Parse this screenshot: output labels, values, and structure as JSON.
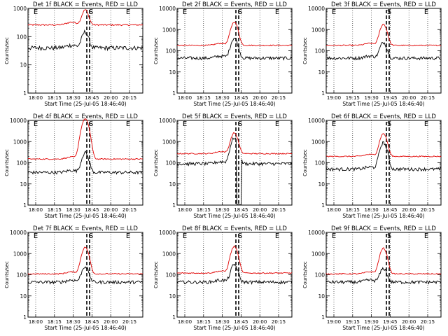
{
  "chart_data": [
    {
      "type": "line",
      "title": "Det 1f BLACK = Events, RED = LLD",
      "ylabel": "Counts/sec",
      "xlabel": "Start Time (25-Jul-05 18:46:40)",
      "x_ticks": [
        "18:00",
        "18:15",
        "18:30",
        "18:45",
        "20:00",
        "20:15"
      ],
      "y_ticks": [
        "1",
        "10",
        "100",
        "1000"
      ],
      "ylim": [
        1,
        1000
      ],
      "scale": "log",
      "markers": [
        "E",
        "S",
        "E"
      ],
      "peak_black": 150,
      "peak_red": 900,
      "base_black": 40,
      "base_red": 260,
      "flare": "large"
    },
    {
      "type": "line",
      "title": "Det 2f BLACK = Events, RED = LLD",
      "ylabel": "Counts/sec",
      "xlabel": "Start Time (25-Jul-05 18:46:40)",
      "x_ticks": [
        "18:00",
        "18:15",
        "18:30",
        "18:45",
        "20:00",
        "20:15"
      ],
      "y_ticks": [
        "1",
        "10",
        "100",
        "1000",
        "10000"
      ],
      "ylim": [
        1,
        10000
      ],
      "scale": "log",
      "markers": [
        "E",
        "S",
        "E"
      ],
      "peak_black": 400,
      "peak_red": 2300,
      "base_black": 45,
      "base_red": 180,
      "flare": "normal"
    },
    {
      "type": "line",
      "title": "Det 3f BLACK = Events, RED = LLD",
      "ylabel": "Counts/sec",
      "xlabel": "Start Time (25-Jul-05 18:46:40)",
      "x_ticks": [
        "19:00",
        "19:15",
        "19:30",
        "19:45",
        "20:00",
        "20:15"
      ],
      "y_ticks": [
        "1",
        "10",
        "100",
        "1000",
        "10000"
      ],
      "ylim": [
        1,
        10000
      ],
      "scale": "log",
      "markers": [
        "E",
        "S",
        "E"
      ],
      "peak_black": 250,
      "peak_red": 1800,
      "base_black": 45,
      "base_red": 180,
      "flare": "normal"
    },
    {
      "type": "line",
      "title": "Det 4f BLACK = Events, RED = LLD",
      "ylabel": "Counts/sec",
      "xlabel": "Start Time (25-Jul-05 18:46:40)",
      "x_ticks": [
        "18:00",
        "18:15",
        "18:30",
        "18:45",
        "20:00",
        "20:15"
      ],
      "y_ticks": [
        "1",
        "10",
        "100",
        "1000",
        "10000"
      ],
      "ylim": [
        1,
        10000
      ],
      "scale": "log",
      "markers": [
        "E",
        "S",
        "E"
      ],
      "peak_black": 300,
      "peak_red": 12000,
      "base_black": 35,
      "base_red": 150,
      "flare": "large"
    },
    {
      "type": "line",
      "title": "Det 5f BLACK = Events, RED = LLD",
      "ylabel": "Counts/sec",
      "xlabel": "Start Time (25-Jul-05 18:46:40)",
      "x_ticks": [
        "18:00",
        "18:15",
        "18:30",
        "18:45",
        "20:00",
        "20:15"
      ],
      "y_ticks": [
        "1",
        "10",
        "100",
        "1000",
        "10000"
      ],
      "ylim": [
        1,
        10000
      ],
      "scale": "log",
      "markers": [
        "E",
        "S",
        "E"
      ],
      "peak_black": 1500,
      "peak_red": 2600,
      "base_black": 90,
      "base_red": 270,
      "flare": "deep"
    },
    {
      "type": "line",
      "title": "Det 6f BLACK = Events, RED = LLD",
      "ylabel": "Counts/sec",
      "xlabel": "Start Time (25-Jul-05 18:46:40)",
      "x_ticks": [
        "18:00",
        "18:15",
        "18:30",
        "18:45",
        "20:00",
        "20:15"
      ],
      "y_ticks": [
        "1",
        "10",
        "100",
        "1000",
        "10000"
      ],
      "ylim": [
        1,
        10000
      ],
      "scale": "log",
      "markers": [
        "E",
        "S",
        "E"
      ],
      "peak_black": 900,
      "peak_red": 2400,
      "base_black": 50,
      "base_red": 200,
      "flare": "normal"
    },
    {
      "type": "line",
      "title": "Det 7f BLACK = Events, RED = LLD",
      "ylabel": "Counts/sec",
      "xlabel": "Start Time (25-Jul-05 18:46:40)",
      "x_ticks": [
        "18:00",
        "18:15",
        "18:30",
        "18:45",
        "20:00",
        "20:15"
      ],
      "y_ticks": [
        "1",
        "10",
        "100",
        "1000",
        "10000"
      ],
      "ylim": [
        1,
        10000
      ],
      "scale": "log",
      "markers": [
        "E",
        "S",
        "E"
      ],
      "peak_black": 250,
      "peak_red": 2000,
      "base_black": 45,
      "base_red": 110,
      "flare": "normal"
    },
    {
      "type": "line",
      "title": "Det 8f BLACK = Events, RED = LLD",
      "ylabel": "Counts/sec",
      "xlabel": "Start Time (25-Jul-05 18:46:40)",
      "x_ticks": [
        "18:00",
        "18:15",
        "18:30",
        "18:45",
        "20:00",
        "20:15"
      ],
      "y_ticks": [
        "1",
        "10",
        "100",
        "1000",
        "10000"
      ],
      "ylim": [
        1,
        10000
      ],
      "scale": "log",
      "markers": [
        "E",
        "S",
        "E"
      ],
      "peak_black": 300,
      "peak_red": 2200,
      "base_black": 45,
      "base_red": 120,
      "flare": "normal"
    },
    {
      "type": "line",
      "title": "Det 9f BLACK = Events, RED = LLD",
      "ylabel": "Counts/sec",
      "xlabel": "Start Time (25-Jul-05 18:46:40)",
      "x_ticks": [
        "19:00",
        "19:15",
        "19:30",
        "19:45",
        "20:00",
        "20:15"
      ],
      "y_ticks": [
        "1",
        "10",
        "100",
        "1000",
        "10000"
      ],
      "ylim": [
        1,
        10000
      ],
      "scale": "log",
      "markers": [
        "E",
        "S",
        "E"
      ],
      "peak_black": 200,
      "peak_red": 1800,
      "base_black": 45,
      "base_red": 110,
      "flare": "normal"
    }
  ],
  "colors": {
    "events": "#000000",
    "lld": "#e00000"
  }
}
